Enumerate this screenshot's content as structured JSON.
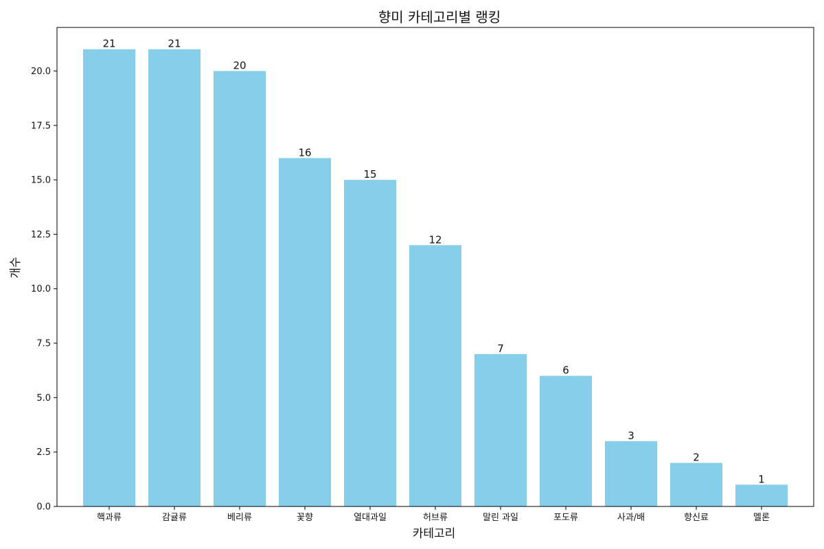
{
  "chart_data": {
    "type": "bar",
    "title": "향미 카테고리별 랭킹",
    "xlabel": "카테고리",
    "ylabel": "개수",
    "categories": [
      "핵과류",
      "감귤류",
      "베리류",
      "꽃향",
      "열대과일",
      "허브류",
      "말린 과일",
      "포도류",
      "사과/배",
      "향신료",
      "멜론"
    ],
    "values": [
      21,
      21,
      20,
      16,
      15,
      12,
      7,
      6,
      3,
      2,
      1
    ],
    "value_labels": [
      "21",
      "21",
      "20",
      "16",
      "15",
      "12",
      "7",
      "6",
      "3",
      "2",
      "1"
    ],
    "ylim": [
      0,
      22
    ],
    "yticks": [
      0,
      2.5,
      5,
      7.5,
      10,
      12.5,
      15,
      17.5,
      20
    ],
    "ytick_labels": [
      "0.0",
      "2.5",
      "5.0",
      "7.5",
      "10.0",
      "12.5",
      "15.0",
      "17.5",
      "20.0"
    ],
    "grid": false,
    "bar_color": "#87CEEB"
  }
}
